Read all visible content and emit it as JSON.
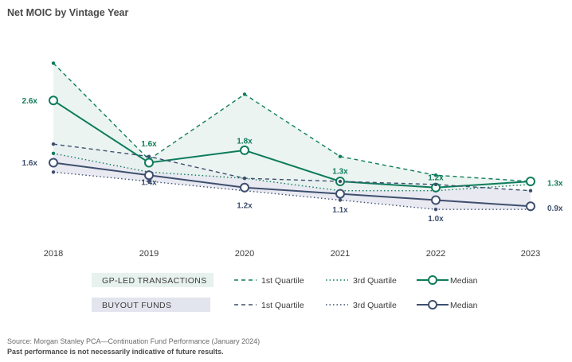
{
  "chart_data": {
    "type": "line",
    "title": "Net MOIC by Vintage Year",
    "x": [
      "2018",
      "2019",
      "2020",
      "2021",
      "2022",
      "2023"
    ],
    "groups": [
      {
        "name": "GP-LED TRANSACTIONS",
        "color": "#0e7c5b",
        "fill": "#e7f2ee",
        "label_fill": "#e7f2ee",
        "series": [
          {
            "name": "1st Quartile",
            "style": "dashed",
            "values": [
              3.2,
              1.65,
              2.7,
              1.7,
              1.4,
              1.3
            ]
          },
          {
            "name": "3rd Quartile",
            "style": "dotted",
            "values": [
              1.75,
              1.45,
              1.35,
              1.15,
              1.15,
              1.25
            ]
          },
          {
            "name": "Median",
            "style": "solid",
            "values": [
              2.6,
              1.6,
              1.8,
              1.3,
              1.2,
              1.3
            ],
            "labels": [
              "2.6x",
              "1.6x",
              "1.8x",
              "1.3x",
              "1.2x",
              "1.3x"
            ]
          }
        ]
      },
      {
        "name": "BUYOUT FUNDS",
        "color": "#3e4f6e",
        "fill": "#e8e9f1",
        "label_fill": "#e3e5ee",
        "series": [
          {
            "name": "1st Quartile",
            "style": "dashed",
            "values": [
              1.9,
              1.7,
              1.35,
              1.3,
              1.25,
              1.15
            ]
          },
          {
            "name": "3rd Quartile",
            "style": "dotted",
            "values": [
              1.45,
              1.3,
              1.15,
              1.0,
              0.85,
              0.85
            ]
          },
          {
            "name": "Median",
            "style": "solid",
            "values": [
              1.6,
              1.4,
              1.2,
              1.1,
              1.0,
              0.9
            ],
            "labels": [
              "1.6x",
              "1.4x",
              "1.2x",
              "1.1x",
              "1.0x",
              "0.9x"
            ]
          }
        ]
      }
    ],
    "ylim": [
      0.5,
      3.5
    ],
    "grid": false
  },
  "footer": {
    "source": "Source: Morgan Stanley PCA—Continuation Fund Performance (January 2024)",
    "disclaimer": "Past performance is not necessarily indicative of future results."
  }
}
